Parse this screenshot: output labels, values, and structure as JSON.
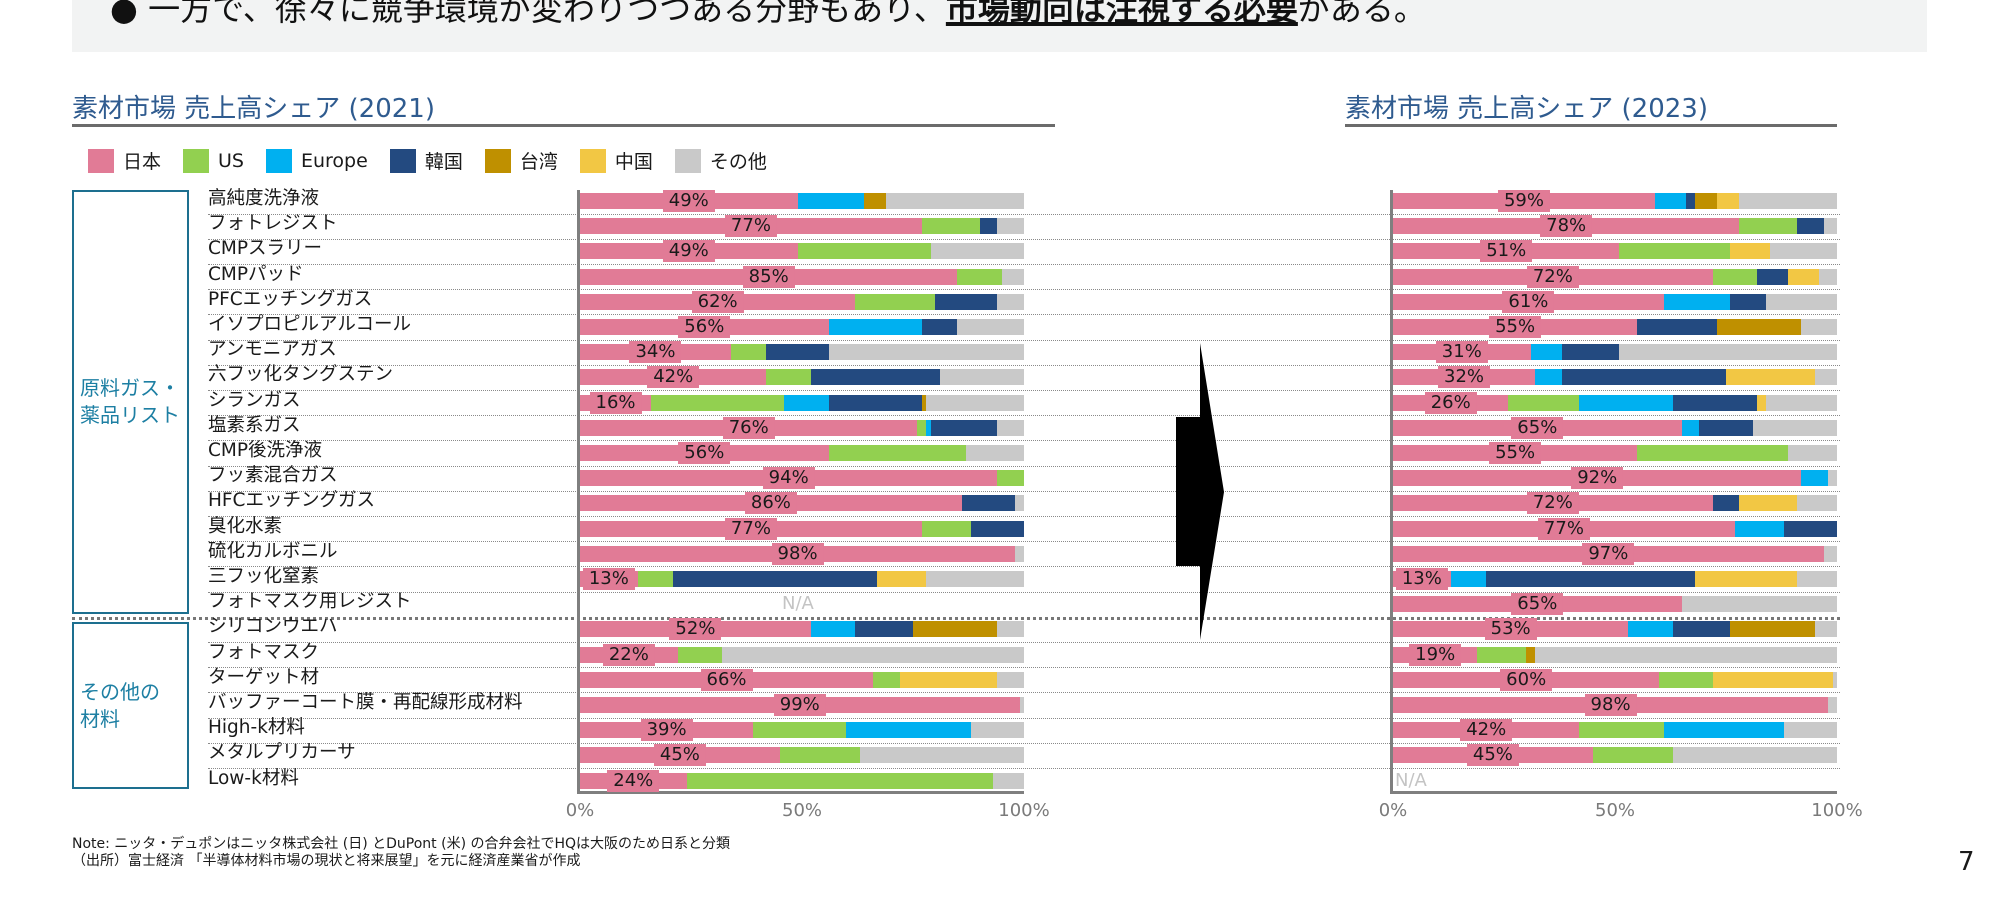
{
  "banner": {
    "text_before": "一方で、徐々に競争環境が変わりつつある分野もあり、",
    "text_emphasis": "市場動向は注視する必要",
    "text_after": "がある。"
  },
  "legend": [
    {
      "label": "日本",
      "color": "#e17b96"
    },
    {
      "label": "US",
      "color": "#92d050"
    },
    {
      "label": "Europe",
      "color": "#00b0f0"
    },
    {
      "label": "韓国",
      "color": "#234a80"
    },
    {
      "label": "台湾",
      "color": "#bf9000"
    },
    {
      "label": "中国",
      "color": "#f2c744"
    },
    {
      "label": "その他",
      "color": "#c9c9c9"
    }
  ],
  "groups": [
    {
      "label_line1": "原料ガス・",
      "label_line2": "薬品リスト"
    },
    {
      "label_line1": "その他の",
      "label_line2": "材料"
    }
  ],
  "chart_data": [
    {
      "type": "bar",
      "orientation": "horizontal",
      "stacked": true,
      "title": "素材市場 売上高シェア (2021)",
      "xlim": [
        0,
        100
      ],
      "xticks": [
        "0%",
        "50%",
        "100%"
      ],
      "na_label": "N/A",
      "categories": [
        "高純度洗浄液",
        "フォトレジスト",
        "CMPスラリー",
        "CMPパッド",
        "PFCエッチングガス",
        "イソプロピルアルコール",
        "アンモニアガス",
        "六フッ化タングステン",
        "シランガス",
        "塩素系ガス",
        "CMP後洗浄液",
        "フッ素混合ガス",
        "HFCエッチングガス",
        "臭化水素",
        "硫化カルボニル",
        "三フッ化窒素",
        "フォトマスク用レジスト",
        "シリコンウエハ",
        "フォトマスク",
        "ターゲット材",
        "バッファーコート膜・再配線形成材料",
        "High-k材料",
        "メタルプリカーサ",
        "Low-k材料"
      ],
      "series": [
        {
          "name": "日本",
          "values": [
            49,
            77,
            49,
            85,
            62,
            56,
            34,
            42,
            16,
            76,
            56,
            94,
            86,
            77,
            98,
            13,
            null,
            52,
            22,
            66,
            99,
            39,
            45,
            24
          ]
        },
        {
          "name": "US",
          "values": [
            0,
            13,
            30,
            10,
            18,
            0,
            8,
            10,
            30,
            2,
            31,
            6,
            0,
            11,
            0,
            8,
            null,
            0,
            10,
            6,
            0,
            21,
            18,
            69
          ]
        },
        {
          "name": "Europe",
          "values": [
            15,
            0,
            0,
            0,
            0,
            21,
            0,
            0,
            10,
            1,
            0,
            0,
            0,
            0,
            0,
            0,
            null,
            10,
            0,
            0,
            0,
            28,
            0,
            0
          ]
        },
        {
          "name": "韓国",
          "values": [
            0,
            4,
            0,
            0,
            14,
            8,
            14,
            29,
            21,
            15,
            0,
            0,
            12,
            12,
            0,
            46,
            null,
            13,
            0,
            0,
            0,
            0,
            0,
            0
          ]
        },
        {
          "name": "台湾",
          "values": [
            5,
            0,
            0,
            0,
            0,
            0,
            0,
            0,
            1,
            0,
            0,
            0,
            0,
            0,
            0,
            0,
            null,
            19,
            0,
            0,
            0,
            0,
            0,
            0
          ]
        },
        {
          "name": "中国",
          "values": [
            0,
            0,
            0,
            0,
            0,
            0,
            0,
            0,
            0,
            0,
            0,
            0,
            0,
            0,
            0,
            11,
            null,
            0,
            0,
            22,
            0,
            0,
            0,
            0
          ]
        },
        {
          "name": "その他",
          "values": [
            31,
            6,
            21,
            5,
            6,
            15,
            44,
            19,
            22,
            6,
            13,
            0,
            2,
            0,
            2,
            22,
            null,
            6,
            68,
            6,
            1,
            12,
            37,
            7
          ]
        }
      ],
      "data_labels": "日本 share shown as percent"
    },
    {
      "type": "bar",
      "orientation": "horizontal",
      "stacked": true,
      "title": "素材市場 売上高シェア (2023)",
      "xlim": [
        0,
        100
      ],
      "xticks": [
        "0%",
        "50%",
        "100%"
      ],
      "na_label": "N/A",
      "categories": [
        "高純度洗浄液",
        "フォトレジスト",
        "CMPスラリー",
        "CMPパッド",
        "PFCエッチングガス",
        "イソプロピルアルコール",
        "アンモニアガス",
        "六フッ化タングステン",
        "シランガス",
        "塩素系ガス",
        "CMP後洗浄液",
        "フッ素混合ガス",
        "HFCエッチングガス",
        "臭化水素",
        "硫化カルボニル",
        "三フッ化窒素",
        "フォトマスク用レジスト",
        "シリコンウエハ",
        "フォトマスク",
        "ターゲット材",
        "バッファーコート膜・再配線形成材料",
        "High-k材料",
        "メタルプリカーサ",
        "Low-k材料"
      ],
      "series": [
        {
          "name": "日本",
          "values": [
            59,
            78,
            51,
            72,
            61,
            55,
            31,
            32,
            26,
            65,
            55,
            92,
            72,
            77,
            97,
            13,
            65,
            53,
            19,
            60,
            98,
            42,
            45,
            null
          ]
        },
        {
          "name": "US",
          "values": [
            0,
            13,
            25,
            10,
            0,
            0,
            0,
            0,
            16,
            0,
            34,
            0,
            0,
            0,
            0,
            0,
            0,
            0,
            11,
            12,
            0,
            19,
            18,
            null
          ]
        },
        {
          "name": "Europe",
          "values": [
            7,
            0,
            0,
            0,
            15,
            0,
            7,
            6,
            21,
            4,
            0,
            6,
            0,
            11,
            0,
            8,
            0,
            10,
            0,
            0,
            0,
            27,
            0,
            null
          ]
        },
        {
          "name": "韓国",
          "values": [
            2,
            6,
            0,
            7,
            8,
            18,
            13,
            37,
            19,
            12,
            0,
            0,
            6,
            12,
            0,
            47,
            0,
            13,
            0,
            0,
            0,
            0,
            0,
            null
          ]
        },
        {
          "name": "台湾",
          "values": [
            5,
            0,
            0,
            0,
            0,
            19,
            0,
            0,
            0,
            0,
            0,
            0,
            0,
            0,
            0,
            0,
            0,
            19,
            2,
            0,
            0,
            0,
            0,
            null
          ]
        },
        {
          "name": "中国",
          "values": [
            5,
            0,
            9,
            7,
            0,
            0,
            0,
            20,
            2,
            0,
            0,
            0,
            13,
            0,
            0,
            23,
            0,
            0,
            0,
            27,
            0,
            0,
            0,
            null
          ]
        },
        {
          "name": "その他",
          "values": [
            22,
            3,
            15,
            4,
            16,
            8,
            49,
            5,
            16,
            19,
            11,
            2,
            9,
            0,
            3,
            9,
            35,
            5,
            68,
            1,
            2,
            12,
            37,
            null
          ]
        }
      ]
    }
  ],
  "notes": {
    "line1": "Note: ニッタ・デュポンはニッタ株式会社 (日) とDuPont (米) の合弁会社でHQは大阪のため日系と分類",
    "line2": "（出所）富士経済 「半導体材料市場の現状と将来展望」を元に経済産業省が作成"
  },
  "page_number": "7"
}
